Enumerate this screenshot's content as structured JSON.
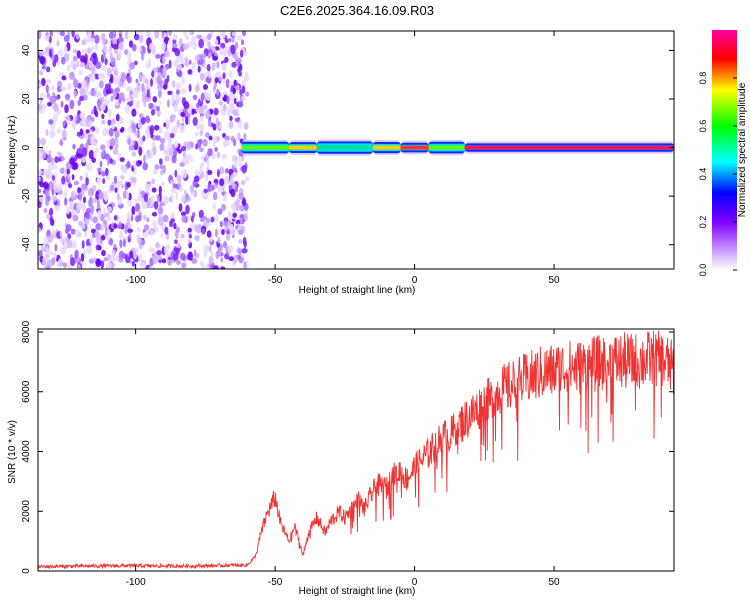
{
  "figure_title": "C2E6.2025.364.16.09.R03",
  "chart_data": [
    {
      "type": "heatmap",
      "title": "C2E6.2025.364.16.09.R03",
      "xlabel": "Height of straight line (km)",
      "ylabel": "Frequency (Hz)",
      "xlim": [
        -135,
        93
      ],
      "ylim": [
        -50,
        48
      ],
      "xticks": [
        -100,
        -50,
        0,
        50
      ],
      "xtick_labels": [
        "-100",
        "-50",
        "0",
        "50"
      ],
      "yticks": [
        -40,
        -20,
        0,
        20,
        40
      ],
      "ytick_labels": [
        "-40",
        "-20",
        "0",
        "20",
        "40"
      ],
      "colorbar": {
        "label": "Normalized spectral amplitude",
        "range": [
          0,
          1
        ],
        "ticks": [
          0.0,
          0.2,
          0.4,
          0.6,
          0.8
        ],
        "tick_labels": [
          "0.0",
          "0.2",
          "0.4",
          "0.6",
          "0.8"
        ],
        "colors": [
          "#ffffff",
          "#8000ff",
          "#0000ff",
          "#00ffff",
          "#00ff00",
          "#ffff00",
          "#ff0000",
          "#ff00a0"
        ]
      },
      "noise_region_km": [
        -135,
        -60
      ],
      "signal_band": {
        "center_hz": 0,
        "segments": [
          {
            "x": [
              -62,
              -45
            ],
            "amplitude": 0.55
          },
          {
            "x": [
              -45,
              -35
            ],
            "amplitude": 0.65
          },
          {
            "x": [
              -35,
              -15
            ],
            "amplitude": 0.45
          },
          {
            "x": [
              -15,
              -5
            ],
            "amplitude": 0.6
          },
          {
            "x": [
              -5,
              5
            ],
            "amplitude": 0.8
          },
          {
            "x": [
              5,
              18
            ],
            "amplitude": 0.55
          },
          {
            "x": [
              18,
              93
            ],
            "amplitude": 0.95
          }
        ]
      }
    },
    {
      "type": "line",
      "xlabel": "Height of straight line (km)",
      "ylabel": "SNR (10 * v/v)",
      "xlim": [
        -135,
        93
      ],
      "ylim": [
        0,
        8100
      ],
      "xticks": [
        -100,
        -50,
        0,
        50
      ],
      "xtick_labels": [
        "-100",
        "-50",
        "0",
        "50"
      ],
      "yticks": [
        0,
        2000,
        4000,
        6000,
        8000
      ],
      "ytick_labels": [
        "0",
        "2000",
        "4000",
        "6000",
        "8000"
      ],
      "line_color": "#f03232",
      "series": [
        {
          "name": "SNR",
          "x": [
            -135,
            -120,
            -100,
            -80,
            -65,
            -60,
            -57,
            -55,
            -53,
            -50,
            -48,
            -45,
            -43,
            -41,
            -40,
            -38,
            -35,
            -32,
            -30,
            -27,
            -25,
            -22,
            -20,
            -18,
            -15,
            -13,
            -10,
            -8,
            -5,
            -3,
            0,
            3,
            5,
            8,
            10,
            13,
            15,
            18,
            20,
            23,
            25,
            28,
            30,
            33,
            35,
            40,
            45,
            50,
            55,
            60,
            65,
            70,
            75,
            80,
            85,
            90,
            93
          ],
          "y": [
            150,
            170,
            180,
            170,
            200,
            200,
            500,
            1300,
            1900,
            2500,
            1600,
            1000,
            1500,
            900,
            500,
            1300,
            1800,
            1300,
            1700,
            2000,
            1800,
            2200,
            2400,
            2100,
            2700,
            2900,
            2800,
            3200,
            3400,
            3100,
            3500,
            3800,
            4000,
            4300,
            4500,
            4600,
            4900,
            5100,
            5300,
            5500,
            5700,
            5800,
            6100,
            6200,
            6300,
            6500,
            6700,
            6800,
            6900,
            6900,
            7000,
            7100,
            7100,
            7100,
            7200,
            7100,
            6800
          ]
        }
      ]
    }
  ]
}
